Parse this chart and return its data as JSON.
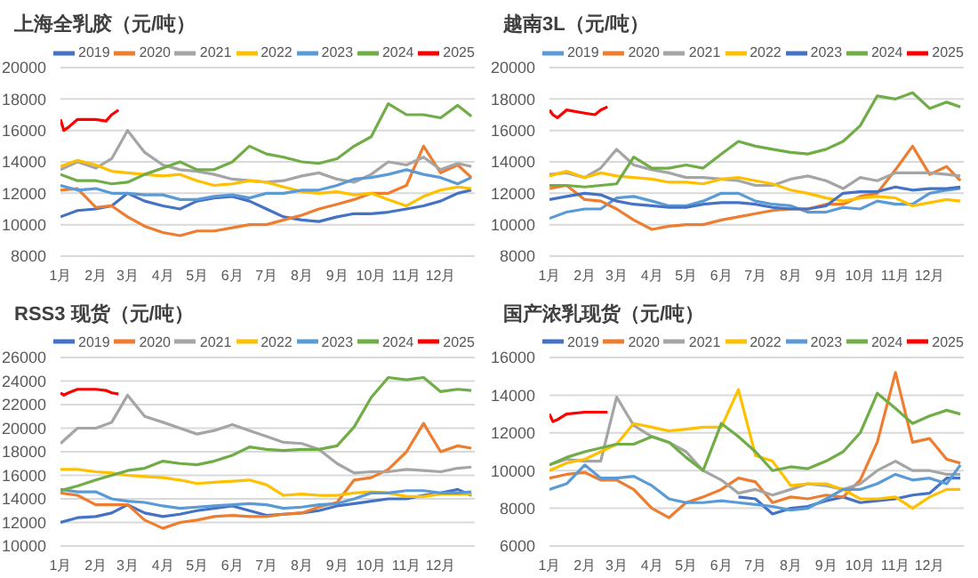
{
  "chart_data": [
    {
      "type": "line",
      "title": "上海全乳胶（元/吨）",
      "x": [
        "--01-01",
        "--01-16",
        "--02-01",
        "--02-15",
        "--03-01",
        "--03-16",
        "--04-01",
        "--04-16",
        "--05-01",
        "--05-16",
        "--06-01",
        "--06-16",
        "--07-01",
        "--07-16",
        "--08-01",
        "--08-16",
        "--09-01",
        "--09-16",
        "--10-01",
        "--10-16",
        "--11-01",
        "--11-16",
        "--12-01",
        "--12-16",
        "--12-28"
      ],
      "xlim": [
        "--01-01",
        "--12-31"
      ],
      "xticks": [
        {
          "value": "--01-01",
          "label": "1月"
        },
        {
          "value": "--02-01",
          "label": "2月"
        },
        {
          "value": "--03-01",
          "label": "3月"
        },
        {
          "value": "--04-01",
          "label": "4月"
        },
        {
          "value": "--05-01",
          "label": "5月"
        },
        {
          "value": "--06-01",
          "label": "6月"
        },
        {
          "value": "--07-01",
          "label": "7月"
        },
        {
          "value": "--08-01",
          "label": "8月"
        },
        {
          "value": "--09-01",
          "label": "9月"
        },
        {
          "value": "--10-01",
          "label": "10月"
        },
        {
          "value": "--11-01",
          "label": "11月"
        },
        {
          "value": "--12-01",
          "label": "12月"
        }
      ],
      "ylim": [
        8000,
        20000
      ],
      "yticks": [
        8000,
        10000,
        12000,
        14000,
        16000,
        18000,
        20000
      ],
      "grid": "y",
      "legend": "top",
      "marker": "none",
      "line_style": "solid",
      "series": [
        {
          "name": "2019",
          "color": "#4472c4",
          "values": [
            10500,
            10900,
            11000,
            11200,
            12000,
            11500,
            11200,
            11000,
            11500,
            11700,
            11800,
            11500,
            11000,
            10500,
            10300,
            10200,
            10500,
            10700,
            10700,
            10800,
            11000,
            11200,
            11500,
            12000,
            12200
          ]
        },
        {
          "name": "2020",
          "color": "#ed7d31",
          "values": [
            12200,
            12300,
            11100,
            11200,
            10500,
            9900,
            9500,
            9300,
            9600,
            9600,
            9800,
            10000,
            10000,
            10300,
            10600,
            11000,
            11300,
            11600,
            12000,
            12000,
            12500,
            15000,
            13300,
            13800,
            13000
          ]
        },
        {
          "name": "2021",
          "color": "#a5a5a5",
          "values": [
            13500,
            14000,
            13600,
            14200,
            16000,
            14600,
            13800,
            13500,
            13400,
            13200,
            12900,
            12800,
            12700,
            12800,
            13100,
            13300,
            12900,
            12700,
            13200,
            14000,
            13800,
            14300,
            13500,
            13900,
            13700
          ]
        },
        {
          "name": "2022",
          "color": "#ffc000",
          "values": [
            13700,
            14100,
            13800,
            13400,
            13300,
            13200,
            13100,
            13200,
            12800,
            12500,
            12600,
            12800,
            12700,
            12400,
            12100,
            12000,
            12100,
            11900,
            12000,
            11600,
            11200,
            11800,
            12200,
            12400,
            12300
          ]
        },
        {
          "name": "2023",
          "color": "#5b9bd5",
          "values": [
            12500,
            12200,
            12300,
            12000,
            12000,
            11900,
            11900,
            11600,
            11600,
            11800,
            11900,
            11700,
            12000,
            12000,
            12200,
            12200,
            12500,
            12900,
            13000,
            13200,
            13500,
            13200,
            13000,
            12600,
            13000
          ]
        },
        {
          "name": "2024",
          "color": "#70ad47",
          "values": [
            13200,
            12800,
            12800,
            12600,
            12700,
            13200,
            13600,
            14000,
            13500,
            13500,
            14000,
            15000,
            14500,
            14300,
            14000,
            13900,
            14200,
            15000,
            15600,
            17700,
            17000,
            17000,
            16800,
            17600,
            16900
          ]
        },
        {
          "name": "2025",
          "color": "#ff0000",
          "x": [
            "--01-01",
            "--01-04",
            "--01-08",
            "--01-16",
            "--02-01",
            "--02-10",
            "--02-15",
            "--02-21"
          ],
          "values": [
            16700,
            16000,
            16200,
            16700,
            16700,
            16600,
            17000,
            17300
          ]
        }
      ]
    },
    {
      "type": "line",
      "title": "越南3L（元/吨）",
      "x": [
        "--01-01",
        "--01-16",
        "--02-01",
        "--02-15",
        "--03-01",
        "--03-16",
        "--04-01",
        "--04-16",
        "--05-01",
        "--05-16",
        "--06-01",
        "--06-16",
        "--07-01",
        "--07-16",
        "--08-01",
        "--08-16",
        "--09-01",
        "--09-16",
        "--10-01",
        "--10-16",
        "--11-01",
        "--11-16",
        "--12-01",
        "--12-16",
        "--12-28"
      ],
      "xlim": [
        "--01-01",
        "--12-31"
      ],
      "xticks": [
        {
          "value": "--01-01",
          "label": "1月"
        },
        {
          "value": "--02-01",
          "label": "2月"
        },
        {
          "value": "--03-01",
          "label": "3月"
        },
        {
          "value": "--04-01",
          "label": "4月"
        },
        {
          "value": "--05-01",
          "label": "5月"
        },
        {
          "value": "--06-01",
          "label": "6月"
        },
        {
          "value": "--07-01",
          "label": "7月"
        },
        {
          "value": "--08-01",
          "label": "8月"
        },
        {
          "value": "--09-01",
          "label": "9月"
        },
        {
          "value": "--10-01",
          "label": "10月"
        },
        {
          "value": "--11-01",
          "label": "11月"
        },
        {
          "value": "--12-01",
          "label": "12月"
        }
      ],
      "ylim": [
        8000,
        20000
      ],
      "yticks": [
        8000,
        10000,
        12000,
        14000,
        16000,
        18000,
        20000
      ],
      "grid": "y",
      "legend": "top",
      "marker": "none",
      "line_style": "solid",
      "series": [
        {
          "name": "2019",
          "color": "#5b9bd5",
          "values": [
            10400,
            10800,
            11000,
            11000,
            11700,
            11800,
            11500,
            11200,
            11200,
            11500,
            12000,
            12000,
            11500,
            11300,
            11200,
            10800,
            10800,
            11100,
            11000,
            11500,
            11300,
            11300,
            12000,
            12200,
            12300
          ]
        },
        {
          "name": "2020",
          "color": "#ed7d31",
          "values": [
            12300,
            12500,
            11600,
            11500,
            11000,
            10300,
            9700,
            9900,
            10000,
            10000,
            10300,
            10500,
            10700,
            10900,
            11000,
            11000,
            11300,
            11300,
            11800,
            12000,
            13500,
            15000,
            13200,
            13700,
            12800
          ]
        },
        {
          "name": "2021",
          "color": "#a5a5a5",
          "values": [
            13200,
            13300,
            13000,
            13600,
            14800,
            13800,
            13500,
            13300,
            13000,
            13000,
            12900,
            12800,
            12500,
            12500,
            12900,
            13100,
            12800,
            12300,
            13000,
            12800,
            13300,
            13300,
            13300,
            13200,
            13100
          ]
        },
        {
          "name": "2022",
          "color": "#ffc000",
          "values": [
            13100,
            13400,
            13000,
            13300,
            13100,
            13000,
            12900,
            12700,
            12700,
            12600,
            12900,
            13000,
            12800,
            12600,
            12200,
            12000,
            11700,
            11500,
            11700,
            11800,
            11700,
            11200,
            11400,
            11600,
            11500
          ]
        },
        {
          "name": "2023",
          "color": "#4472c4",
          "values": [
            11600,
            11800,
            12000,
            11900,
            11500,
            11300,
            11200,
            11100,
            11100,
            11300,
            11400,
            11400,
            11300,
            11100,
            11000,
            11000,
            11200,
            12000,
            12100,
            12100,
            12400,
            12200,
            12300,
            12300,
            12400
          ]
        },
        {
          "name": "2024",
          "color": "#70ad47",
          "values": [
            12500,
            12500,
            12400,
            12500,
            12600,
            14300,
            13600,
            13600,
            13800,
            13600,
            14500,
            15300,
            15000,
            14800,
            14600,
            14500,
            14800,
            15300,
            16300,
            18200,
            18000,
            18400,
            17400,
            17800,
            17500
          ]
        },
        {
          "name": "2025",
          "color": "#ff0000",
          "x": [
            "--01-01",
            "--01-04",
            "--01-08",
            "--01-16",
            "--02-01",
            "--02-10",
            "--02-15",
            "--02-21"
          ],
          "values": [
            17300,
            17000,
            16800,
            17300,
            17100,
            17000,
            17300,
            17500
          ]
        }
      ]
    },
    {
      "type": "line",
      "title": "RSS3 现货（元/吨）",
      "x": [
        "--01-01",
        "--01-16",
        "--02-01",
        "--02-15",
        "--03-01",
        "--03-16",
        "--04-01",
        "--04-16",
        "--05-01",
        "--05-16",
        "--06-01",
        "--06-16",
        "--07-01",
        "--07-16",
        "--08-01",
        "--08-16",
        "--09-01",
        "--09-16",
        "--10-01",
        "--10-16",
        "--11-01",
        "--11-16",
        "--12-01",
        "--12-16",
        "--12-28"
      ],
      "xlim": [
        "--01-01",
        "--12-31"
      ],
      "xticks": [
        {
          "value": "--01-01",
          "label": "1月"
        },
        {
          "value": "--02-01",
          "label": "2月"
        },
        {
          "value": "--03-01",
          "label": "3月"
        },
        {
          "value": "--04-01",
          "label": "4月"
        },
        {
          "value": "--05-01",
          "label": "5月"
        },
        {
          "value": "--06-01",
          "label": "6月"
        },
        {
          "value": "--07-01",
          "label": "7月"
        },
        {
          "value": "--08-01",
          "label": "8月"
        },
        {
          "value": "--09-01",
          "label": "9月"
        },
        {
          "value": "--10-01",
          "label": "10月"
        },
        {
          "value": "--11-01",
          "label": "11月"
        },
        {
          "value": "--12-01",
          "label": "12月"
        }
      ],
      "ylim": [
        10000,
        26000
      ],
      "yticks": [
        10000,
        12000,
        14000,
        16000,
        18000,
        20000,
        22000,
        24000,
        26000
      ],
      "grid": "y",
      "legend": "top",
      "marker": "none",
      "line_style": "solid",
      "series": [
        {
          "name": "2019",
          "color": "#4472c4",
          "values": [
            12000,
            12400,
            12500,
            12800,
            13500,
            12800,
            12500,
            12700,
            13000,
            13200,
            13400,
            13000,
            12600,
            12700,
            12800,
            13000,
            13400,
            13600,
            13800,
            14000,
            14000,
            14300,
            14500,
            14800,
            14300
          ]
        },
        {
          "name": "2020",
          "color": "#ed7d31",
          "values": [
            14500,
            14300,
            13500,
            13500,
            13500,
            12200,
            11500,
            12000,
            12200,
            12500,
            12600,
            12500,
            12500,
            12700,
            12800,
            13300,
            13700,
            15600,
            15800,
            16500,
            18000,
            20400,
            18000,
            18500,
            18300
          ]
        },
        {
          "name": "2021",
          "color": "#a5a5a5",
          "values": [
            18700,
            20000,
            20000,
            20500,
            22800,
            21000,
            20500,
            20000,
            19500,
            19800,
            20300,
            19800,
            19300,
            18800,
            18700,
            18200,
            17000,
            16200,
            16300,
            16300,
            16500,
            16400,
            16300,
            16600,
            16700
          ]
        },
        {
          "name": "2022",
          "color": "#ffc000",
          "values": [
            16500,
            16500,
            16300,
            16200,
            16000,
            15900,
            15800,
            15600,
            15300,
            15400,
            15500,
            15600,
            15200,
            14300,
            14400,
            14300,
            14300,
            14500,
            14600,
            14500,
            14200,
            14200,
            14400,
            14400,
            14400
          ]
        },
        {
          "name": "2023",
          "color": "#5b9bd5",
          "values": [
            14800,
            14600,
            14600,
            14000,
            13800,
            13700,
            13400,
            13200,
            13300,
            13400,
            13500,
            13600,
            13500,
            13200,
            13300,
            13500,
            13600,
            14000,
            14500,
            14500,
            14700,
            14700,
            14500,
            14500,
            14600
          ]
        },
        {
          "name": "2024",
          "color": "#70ad47",
          "values": [
            14700,
            15100,
            15600,
            16000,
            16400,
            16600,
            17200,
            17000,
            16900,
            17200,
            17700,
            18400,
            18200,
            18100,
            18200,
            18200,
            18500,
            20100,
            22600,
            24300,
            24100,
            24300,
            23100,
            23300,
            23200
          ]
        },
        {
          "name": "2025",
          "color": "#ff0000",
          "x": [
            "--01-01",
            "--01-04",
            "--01-08",
            "--01-16",
            "--02-01",
            "--02-10",
            "--02-15",
            "--02-21"
          ],
          "values": [
            23000,
            22800,
            23000,
            23300,
            23300,
            23200,
            23000,
            22900
          ]
        }
      ]
    },
    {
      "type": "line",
      "title": "国产浓乳现货（元/吨）",
      "x": [
        "--01-01",
        "--01-16",
        "--02-01",
        "--02-15",
        "--03-01",
        "--03-16",
        "--04-01",
        "--04-16",
        "--05-01",
        "--05-16",
        "--06-01",
        "--06-16",
        "--07-01",
        "--07-16",
        "--08-01",
        "--08-16",
        "--09-01",
        "--09-16",
        "--10-01",
        "--10-16",
        "--11-01",
        "--11-16",
        "--12-01",
        "--12-16",
        "--12-28"
      ],
      "xlim": [
        "--01-01",
        "--12-31"
      ],
      "xticks": [
        {
          "value": "--01-01",
          "label": "1月"
        },
        {
          "value": "--02-01",
          "label": "2月"
        },
        {
          "value": "--03-01",
          "label": "3月"
        },
        {
          "value": "--04-01",
          "label": "4月"
        },
        {
          "value": "--05-01",
          "label": "5月"
        },
        {
          "value": "--06-01",
          "label": "6月"
        },
        {
          "value": "--07-01",
          "label": "7月"
        },
        {
          "value": "--08-01",
          "label": "8月"
        },
        {
          "value": "--09-01",
          "label": "9月"
        },
        {
          "value": "--10-01",
          "label": "10月"
        },
        {
          "value": "--11-01",
          "label": "11月"
        },
        {
          "value": "--12-01",
          "label": "12月"
        }
      ],
      "ylim": [
        6000,
        16000
      ],
      "yticks": [
        6000,
        8000,
        10000,
        12000,
        14000,
        16000
      ],
      "grid": "y",
      "legend": "top",
      "marker": "none",
      "line_style": "solid",
      "series": [
        {
          "name": "2019",
          "color": "#4472c4",
          "values": [
            null,
            null,
            null,
            null,
            null,
            null,
            null,
            null,
            null,
            null,
            null,
            8600,
            8500,
            7700,
            8000,
            8100,
            8400,
            8600,
            8300,
            8400,
            8500,
            8700,
            8800,
            9600,
            9600
          ]
        },
        {
          "name": "2020",
          "color": "#ed7d31",
          "values": [
            9600,
            9800,
            9900,
            9500,
            9500,
            9000,
            8000,
            7500,
            8300,
            8600,
            9000,
            9600,
            9400,
            8300,
            8600,
            8500,
            8700,
            8600,
            9500,
            11500,
            15200,
            11500,
            11700,
            10600,
            10400
          ]
        },
        {
          "name": "2021",
          "color": "#a5a5a5",
          "values": [
            10300,
            10600,
            10500,
            10500,
            13900,
            12400,
            11800,
            11500,
            11000,
            10000,
            9500,
            8800,
            9000,
            8700,
            9000,
            9300,
            9200,
            9000,
            9300,
            10000,
            10500,
            10000,
            10000,
            9800,
            9800
          ]
        },
        {
          "name": "2022",
          "color": "#ffc000",
          "values": [
            10000,
            10400,
            10600,
            11000,
            11400,
            12500,
            12300,
            12100,
            12200,
            12300,
            12300,
            14300,
            10800,
            10500,
            9200,
            9300,
            9300,
            9000,
            8500,
            8500,
            8600,
            8000,
            8600,
            9000,
            9000
          ]
        },
        {
          "name": "2023",
          "color": "#5b9bd5",
          "values": [
            9000,
            9300,
            10300,
            9600,
            9600,
            9700,
            9200,
            8500,
            8300,
            8300,
            8400,
            8300,
            8200,
            8100,
            7900,
            8000,
            8500,
            9000,
            9000,
            9300,
            9800,
            9500,
            9600,
            9300,
            10300
          ]
        },
        {
          "name": "2024",
          "color": "#70ad47",
          "values": [
            10300,
            10700,
            11000,
            11200,
            11400,
            11400,
            11800,
            11500,
            10700,
            10000,
            12500,
            11800,
            11000,
            10000,
            10200,
            10100,
            10500,
            11000,
            12000,
            14100,
            13300,
            12500,
            12900,
            13200,
            13000
          ]
        },
        {
          "name": "2025",
          "color": "#ff0000",
          "x": [
            "--01-01",
            "--01-04",
            "--01-08",
            "--01-16",
            "--02-01",
            "--02-10",
            "--02-15",
            "--02-21"
          ],
          "values": [
            13000,
            12600,
            12700,
            13000,
            13100,
            13100,
            13100,
            13100
          ]
        }
      ]
    }
  ]
}
